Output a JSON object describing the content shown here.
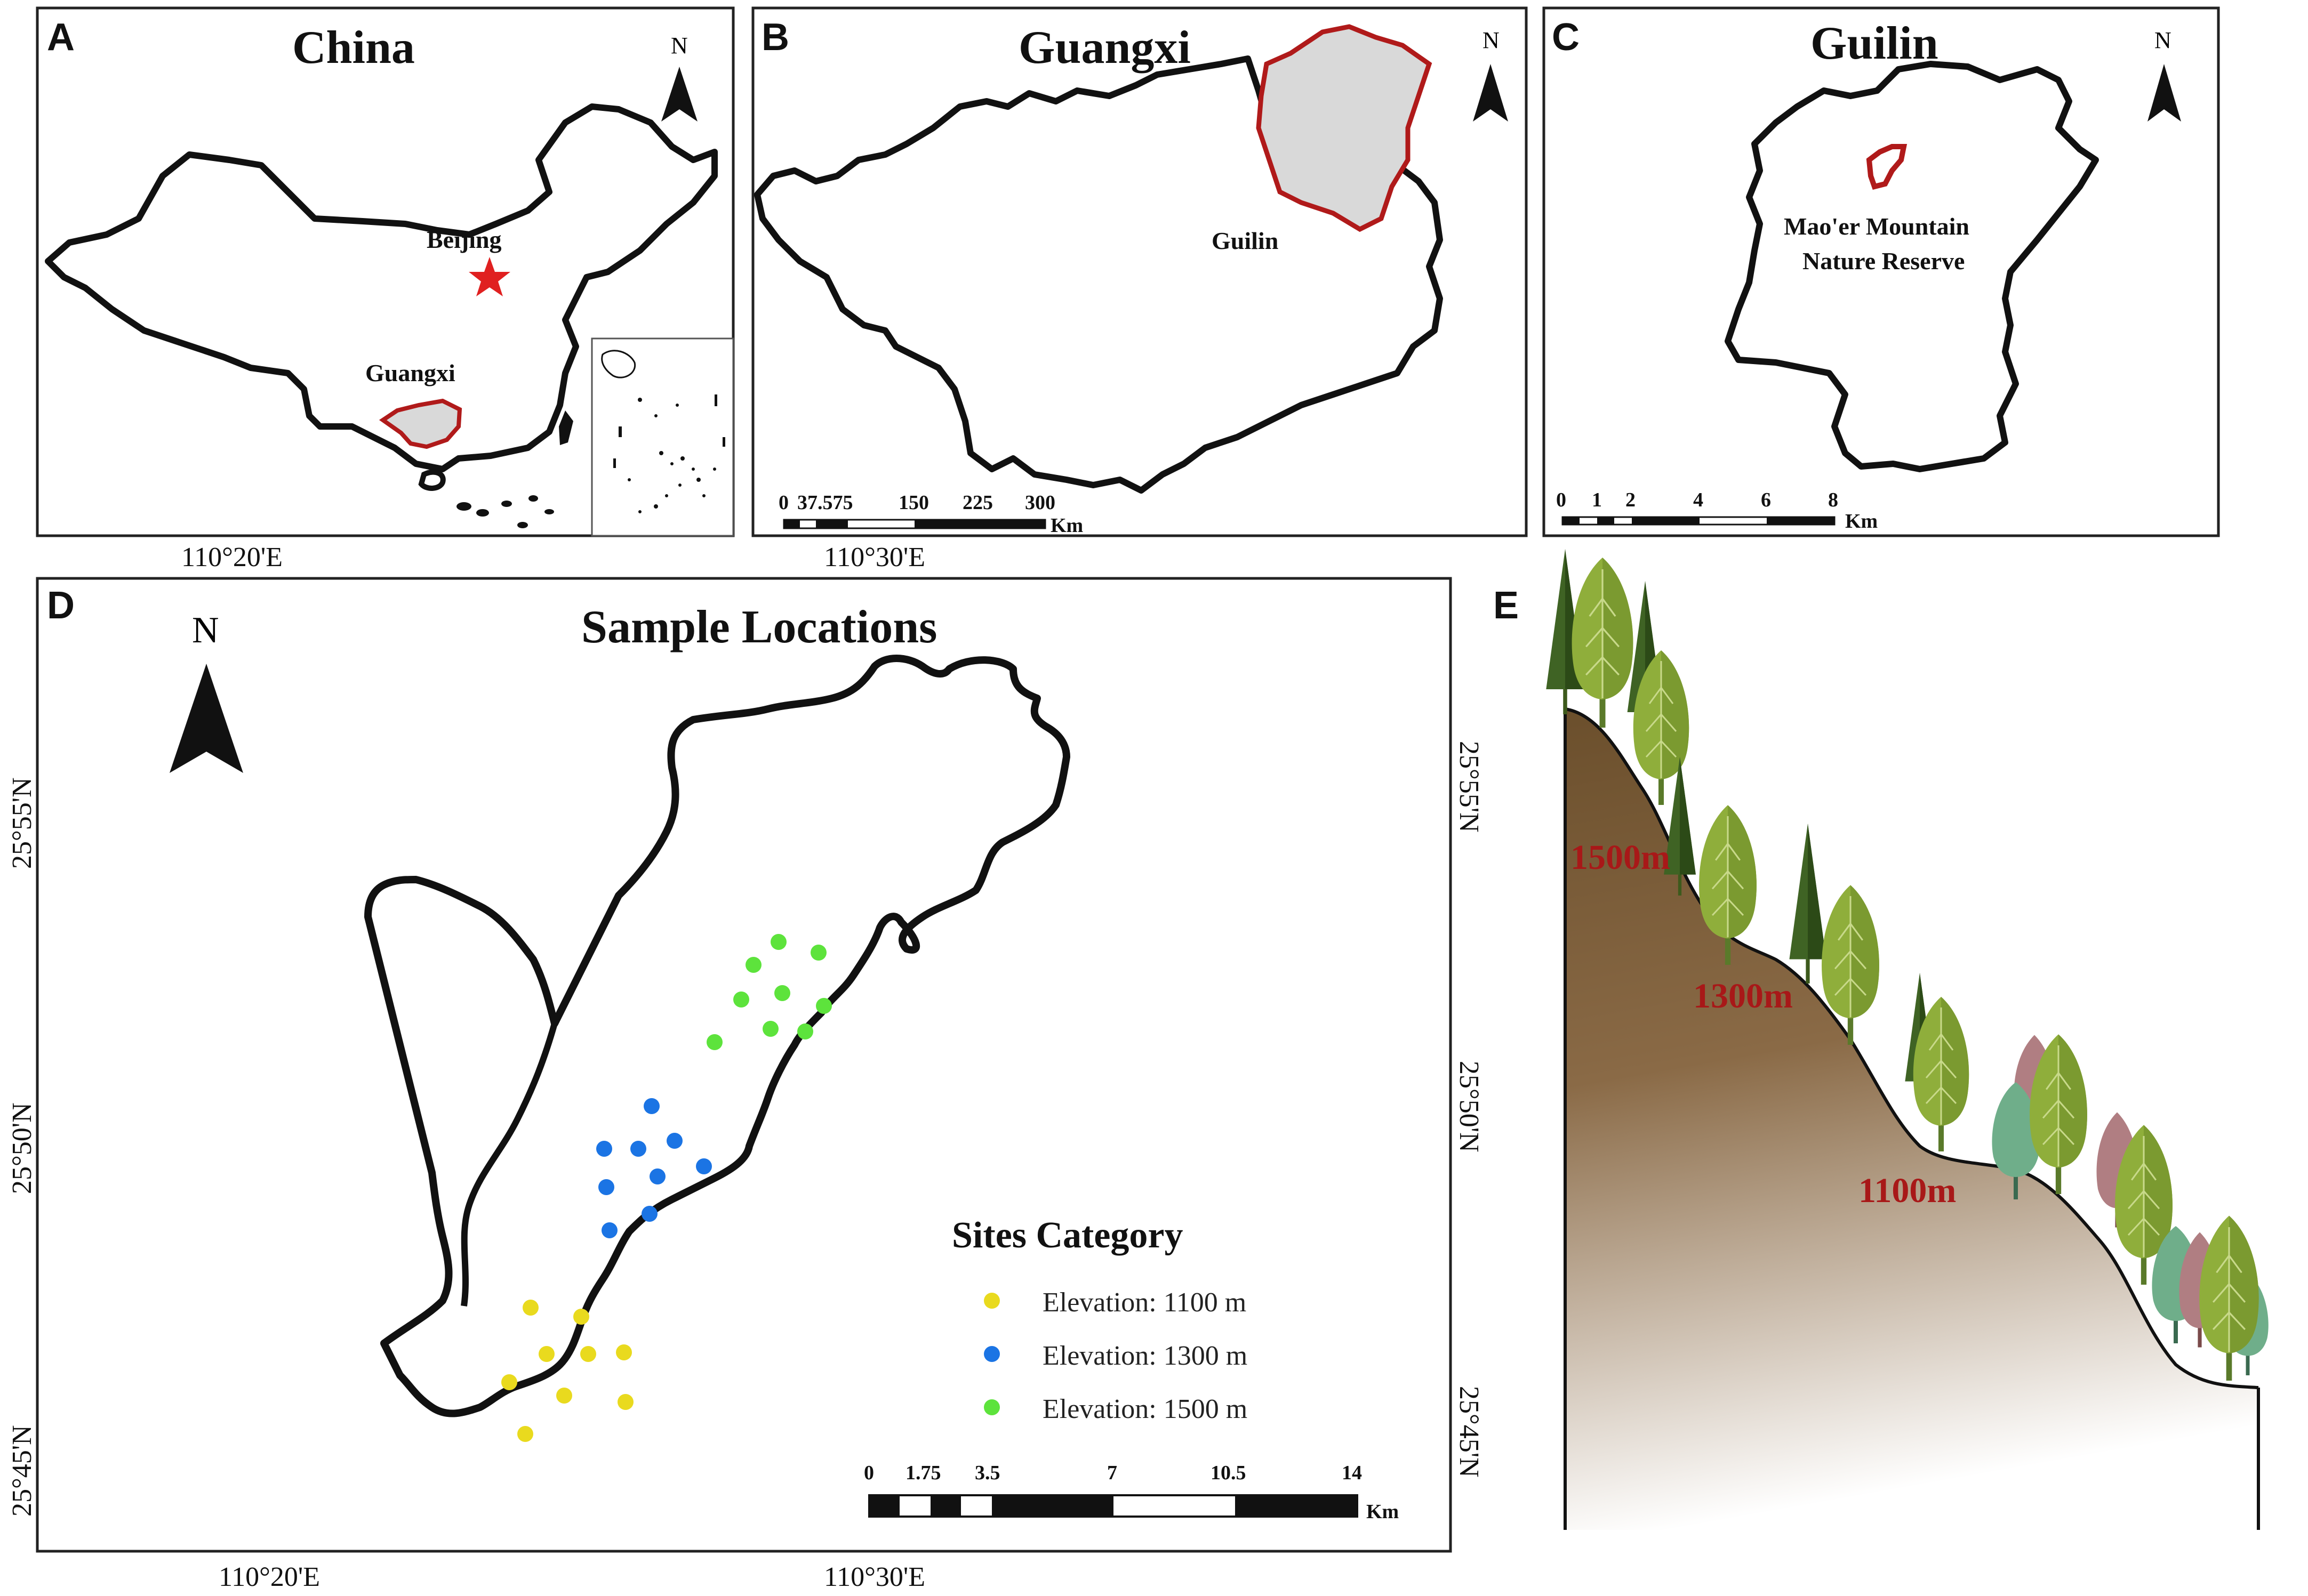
{
  "panels": {
    "a": {
      "letter": "A",
      "title": "China",
      "north": "N",
      "label_capital": "Beijing",
      "label_region": "Guangxi",
      "lon_tick": "110°20'E"
    },
    "b": {
      "letter": "B",
      "title": "Guangxi",
      "north": "N",
      "label_city": "Guilin",
      "scale": {
        "ticks": [
          "0",
          "37.575",
          "150",
          "225",
          "300"
        ],
        "unit": "Km"
      },
      "lon_tick": "110°30'E"
    },
    "c": {
      "letter": "C",
      "title": "Guilin",
      "north": "N",
      "reserve_line1": "Mao'er Mountain",
      "reserve_line2": "Nature Reserve",
      "scale": {
        "ticks": [
          "0",
          "1",
          "2",
          "4",
          "6",
          "8"
        ],
        "unit": "Km"
      }
    },
    "d": {
      "letter": "D",
      "title": "Sample Locations",
      "north": "N",
      "lat_ticks": [
        "25°55'N",
        "25°50'N",
        "25°45'N"
      ],
      "lon_ticks": [
        "110°20'E",
        "110°30'E"
      ],
      "legend": {
        "title": "Sites Category",
        "items": [
          {
            "label": "Elevation: 1100 m",
            "color": "#e9da1e"
          },
          {
            "label": "Elevation: 1300 m",
            "color": "#1b74e4"
          },
          {
            "label": "Elevation: 1500 m",
            "color": "#5de33c"
          }
        ]
      },
      "scale": {
        "ticks": [
          "0",
          "1.75",
          "3.5",
          "7",
          "10.5",
          "14"
        ],
        "unit": "Km"
      }
    },
    "e": {
      "letter": "E",
      "elevations": [
        "1500m",
        "1300m",
        "1100m"
      ]
    }
  },
  "colors": {
    "boundary": "#111111",
    "highlight_outline": "#b01a1a",
    "highlight_fill": "#d9d9d9",
    "capital_star": "#e02020",
    "elevation_label": "#a81818",
    "soil_top": "#6e5330",
    "soil_bottom": "#ffffff",
    "tree_light": "#8cac3a",
    "tree_dark": "#4a6b22"
  },
  "markers": {
    "capital": "star-icon",
    "north_arrow": "north-arrow-icon"
  }
}
